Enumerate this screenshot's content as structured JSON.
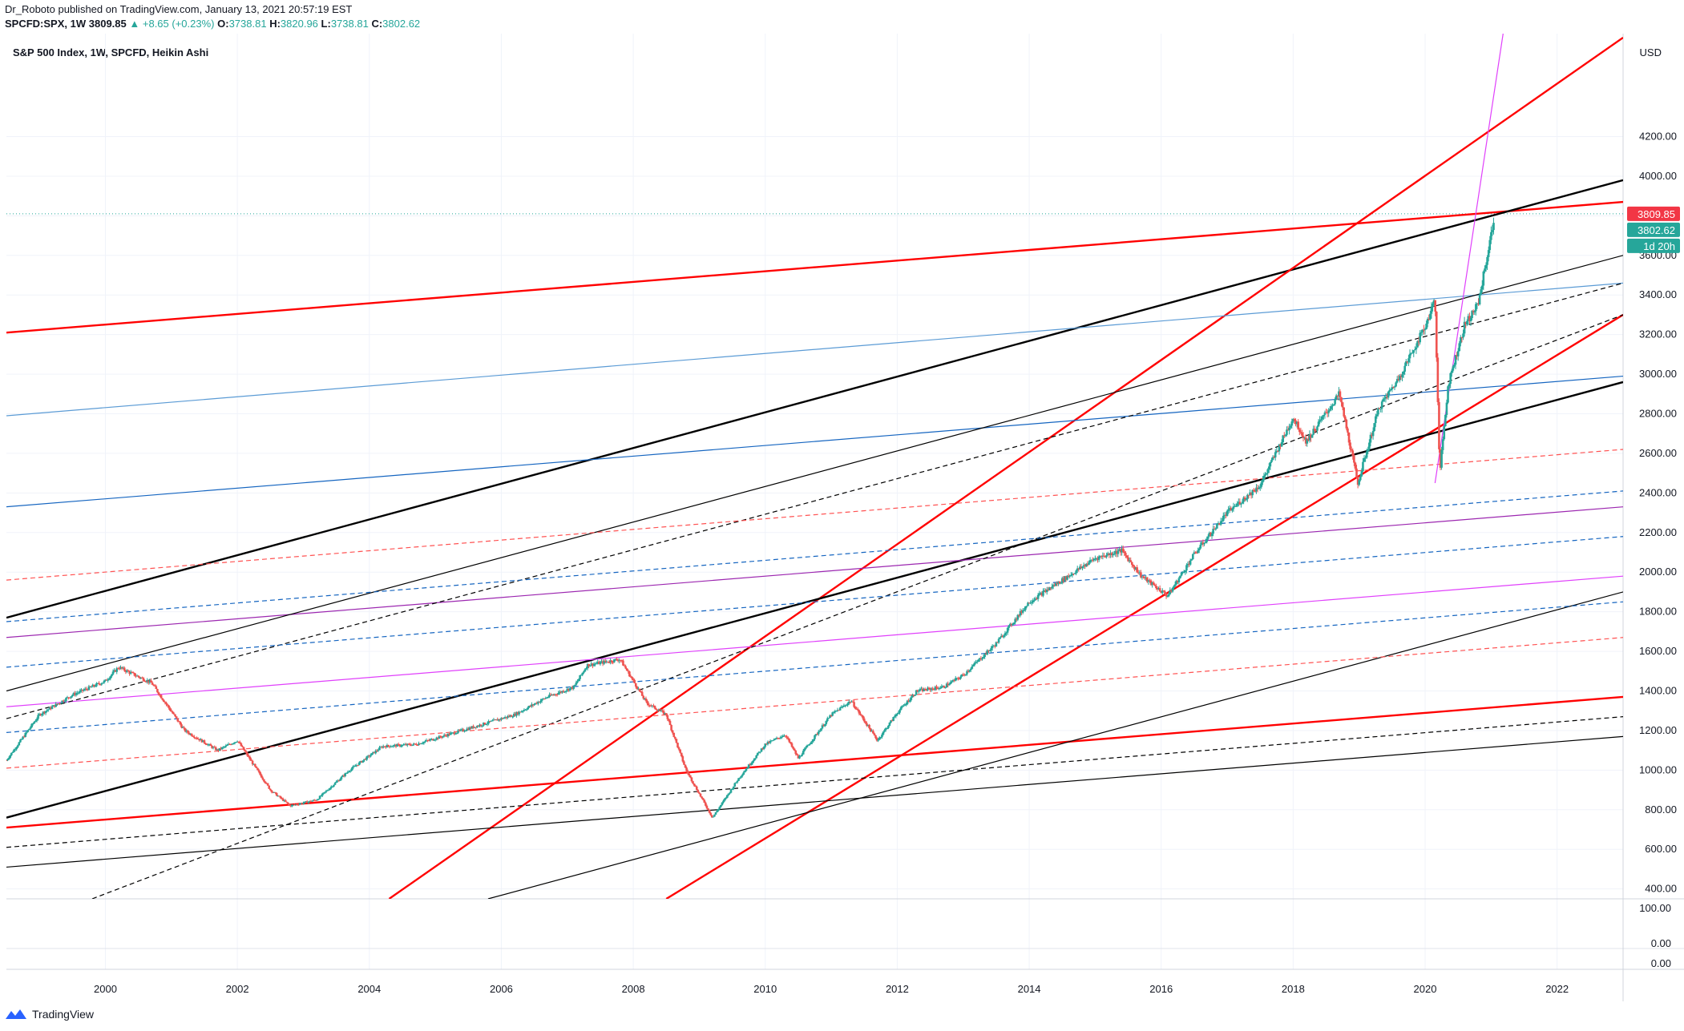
{
  "header": {
    "publisher_line": "Dr_Roboto published on TradingView.com, January 13, 2021 20:57:19 EST",
    "symbol": "SPCFD:SPX, 1W",
    "last": "3809.85",
    "change": "+8.65 (+0.23%)",
    "open_label": "O:",
    "open": "3738.81",
    "high_label": "H:",
    "high": "3820.96",
    "low_label": "L:",
    "low": "3738.81",
    "close_label": "C:",
    "close": "3802.62"
  },
  "legend_title": "S&P 500 Index, 1W, SPCFD, Heikin Ashi",
  "currency": "USD",
  "price_badges": {
    "last_price": "3809.85",
    "close_price": "3802.62",
    "countdown": "1d 20h"
  },
  "footer": {
    "brand": "TradingView"
  },
  "colors": {
    "up": "#26a69a",
    "down": "#ef5350",
    "red_line": "#ff0000",
    "badge_red": "#f23645"
  },
  "chart_data": {
    "type": "line",
    "title": "S&P 500 Index, 1W, SPCFD, Heikin Ashi",
    "xlabel": "",
    "ylabel": "",
    "xlim": [
      1998.5,
      2023
    ],
    "ylim": [
      350,
      4720
    ],
    "x_ticks": [
      "2000",
      "2002",
      "2004",
      "2006",
      "2008",
      "2010",
      "2012",
      "2014",
      "2016",
      "2018",
      "2020",
      "2022"
    ],
    "y_ticks": [
      "400.00",
      "600.00",
      "800.00",
      "1000.00",
      "1200.00",
      "1400.00",
      "1600.00",
      "1800.00",
      "2000.00",
      "2200.00",
      "2400.00",
      "2600.00",
      "2800.00",
      "3000.00",
      "3200.00",
      "3400.00",
      "3600.00",
      "3800.00",
      "4000.00",
      "4200.00"
    ],
    "sub_ticks": [
      "100.00",
      "0.00",
      "0.00"
    ],
    "price_series": {
      "name": "S&P 500",
      "x": [
        1998.5,
        1999.0,
        1999.5,
        2000.0,
        2000.2,
        2000.7,
        2001.2,
        2001.7,
        2002.0,
        2002.5,
        2002.8,
        2003.2,
        2003.7,
        2004.2,
        2004.7,
        2005.2,
        2005.7,
        2006.2,
        2006.7,
        2007.1,
        2007.3,
        2007.8,
        2008.2,
        2008.5,
        2008.8,
        2009.2,
        2009.6,
        2010.0,
        2010.3,
        2010.5,
        2011.0,
        2011.3,
        2011.7,
        2012.0,
        2012.3,
        2012.7,
        2013.0,
        2013.5,
        2014.0,
        2014.5,
        2015.0,
        2015.4,
        2015.7,
        2016.1,
        2016.5,
        2017.0,
        2017.5,
        2018.0,
        2018.2,
        2018.7,
        2018.98,
        2019.3,
        2019.6,
        2020.0,
        2020.15,
        2020.22,
        2020.35,
        2020.6,
        2020.8,
        2021.0,
        2021.05
      ],
      "y": [
        1050,
        1280,
        1380,
        1450,
        1520,
        1440,
        1200,
        1100,
        1150,
        900,
        820,
        850,
        1000,
        1120,
        1130,
        1180,
        1230,
        1280,
        1370,
        1420,
        1530,
        1560,
        1340,
        1280,
        1000,
        760,
        960,
        1130,
        1180,
        1060,
        1280,
        1350,
        1150,
        1290,
        1400,
        1420,
        1480,
        1640,
        1850,
        1960,
        2070,
        2110,
        1980,
        1880,
        2090,
        2300,
        2440,
        2780,
        2660,
        2900,
        2450,
        2830,
        2980,
        3240,
        3380,
        2500,
        2950,
        3250,
        3350,
        3700,
        3810
      ]
    },
    "trendlines": [
      {
        "style": "solid",
        "color": "#ff0000",
        "x": [
          1998.5,
          2023
        ],
        "y": [
          3210,
          3870
        ]
      },
      {
        "style": "solid",
        "color": "#000000",
        "x": [
          1998.5,
          2023
        ],
        "y": [
          1770,
          3980
        ]
      },
      {
        "style": "solid",
        "color": "#ff0000",
        "x": [
          2004.3,
          2023
        ],
        "y": [
          350,
          4700
        ]
      },
      {
        "style": "solid",
        "color": "#ff0000",
        "x": [
          2008.5,
          2023
        ],
        "y": [
          350,
          3300
        ]
      },
      {
        "style": "solid",
        "color": "#000000",
        "x": [
          1998.5,
          2023
        ],
        "y": [
          760,
          2960
        ]
      },
      {
        "style": "solid",
        "color": "#ff0000",
        "x": [
          1998.5,
          2023
        ],
        "y": [
          710,
          1370
        ]
      },
      {
        "style": "solid",
        "color": "#1565c0",
        "x": [
          1998.5,
          2023
        ],
        "y": [
          2330,
          2990
        ]
      },
      {
        "style": "solid",
        "color": "#5b9bd5",
        "x": [
          1998.5,
          2023
        ],
        "y": [
          2790,
          3460
        ]
      },
      {
        "style": "solid",
        "color": "#9c27b0",
        "x": [
          1998.5,
          2023
        ],
        "y": [
          1670,
          2330
        ]
      },
      {
        "style": "solid",
        "color": "#e040fb",
        "x": [
          1998.5,
          2023
        ],
        "y": [
          1320,
          1980
        ]
      },
      {
        "style": "solid",
        "color": "#000000",
        "x": [
          1998.5,
          2023
        ],
        "y": [
          1400,
          3600
        ]
      },
      {
        "style": "solid",
        "color": "#000000",
        "x": [
          1998.5,
          2023
        ],
        "y": [
          510,
          1170
        ]
      },
      {
        "style": "solid",
        "color": "#000000",
        "x": [
          2005.8,
          2023
        ],
        "y": [
          350,
          1900
        ]
      },
      {
        "style": "dashed",
        "color": "#000000",
        "x": [
          1999.8,
          2023
        ],
        "y": [
          350,
          3300
        ]
      },
      {
        "style": "dashed",
        "color": "#000000",
        "x": [
          1998.5,
          2023
        ],
        "y": [
          1260,
          3460
        ]
      },
      {
        "style": "dashed",
        "color": "#000000",
        "x": [
          1998.5,
          2023
        ],
        "y": [
          610,
          1270
        ]
      },
      {
        "style": "dashed",
        "color": "#ff5252",
        "x": [
          1998.5,
          2023
        ],
        "y": [
          1960,
          2620
        ]
      },
      {
        "style": "dashed",
        "color": "#ff5252",
        "x": [
          1998.5,
          2023
        ],
        "y": [
          1010,
          1670
        ]
      },
      {
        "style": "dashed",
        "color": "#1565c0",
        "x": [
          1998.5,
          2023
        ],
        "y": [
          1750,
          2410
        ]
      },
      {
        "style": "dashed",
        "color": "#1565c0",
        "x": [
          1998.5,
          2023
        ],
        "y": [
          1190,
          1850
        ]
      },
      {
        "style": "dashed",
        "color": "#1565c0",
        "x": [
          1998.5,
          2023
        ],
        "y": [
          1520,
          2180
        ]
      },
      {
        "style": "solid",
        "color": "#e040fb",
        "x": [
          2020.15,
          2021.2
        ],
        "y": [
          2450,
          4760
        ]
      }
    ]
  }
}
